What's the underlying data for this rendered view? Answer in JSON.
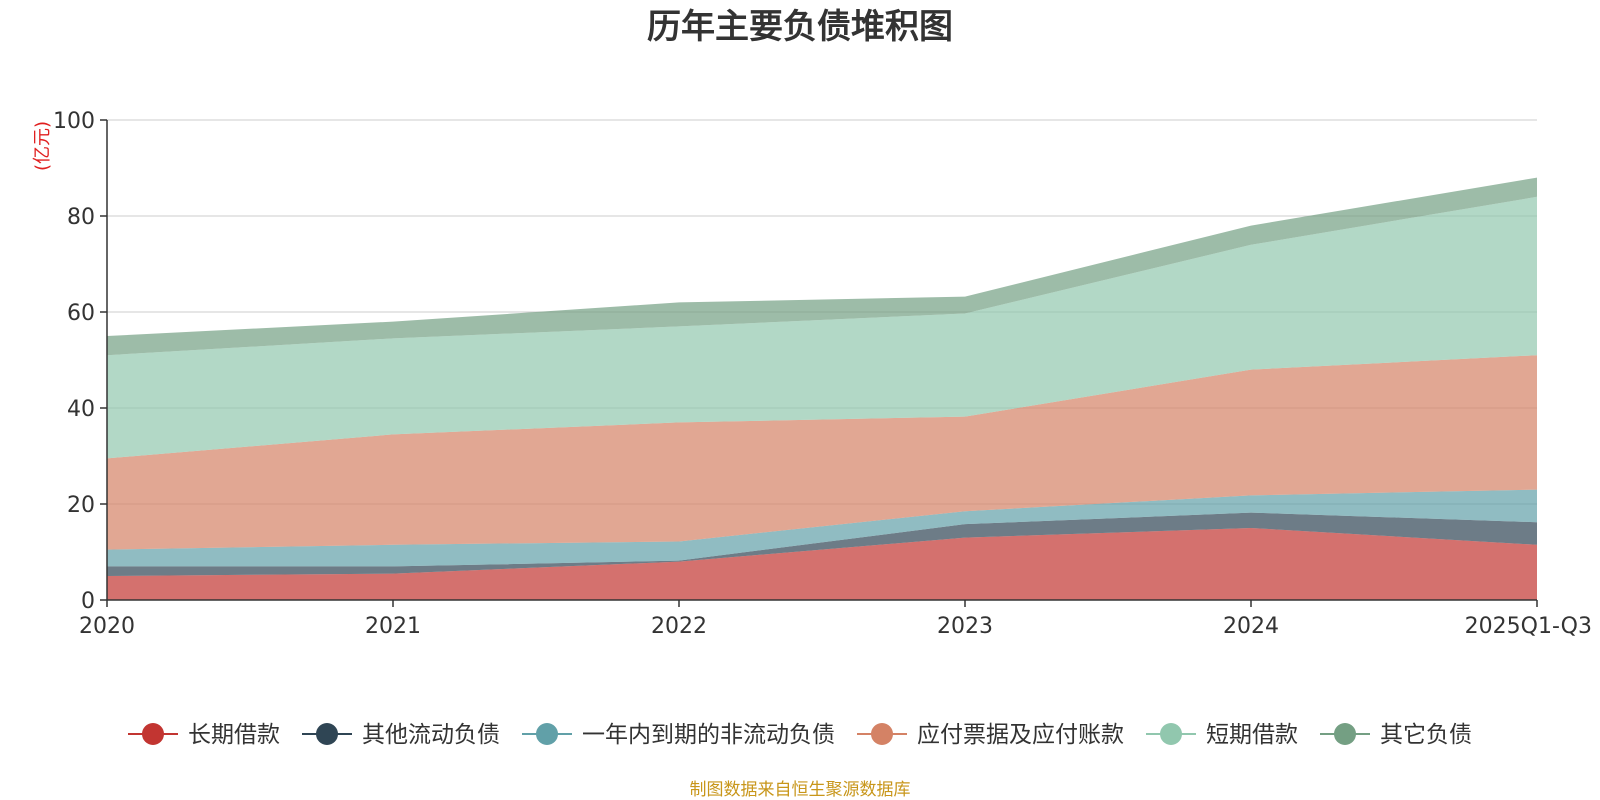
{
  "chart_data": {
    "type": "area",
    "stacked": true,
    "title": "历年主要负债堆积图",
    "ylabel": "(亿元)",
    "ylim": [
      0,
      100
    ],
    "yticks": [
      "0",
      "20",
      "40",
      "60",
      "80",
      "100"
    ],
    "categories": [
      "2020",
      "2021",
      "2022",
      "2023",
      "2024",
      "2025Q1-Q3"
    ],
    "series": [
      {
        "name": "长期借款",
        "color": "#c23531",
        "values": [
          5.0,
          5.5,
          8.0,
          13.0,
          15.0,
          11.5
        ]
      },
      {
        "name": "其他流动负债",
        "color": "#2f4554",
        "values": [
          2.0,
          1.5,
          0.2,
          2.8,
          3.2,
          4.7
        ]
      },
      {
        "name": "一年内到期的非流动负债",
        "color": "#61a0a8",
        "values": [
          3.5,
          4.5,
          4.0,
          2.7,
          3.6,
          6.8
        ]
      },
      {
        "name": "应付票据及应付账款",
        "color": "#d48265",
        "values": [
          19.0,
          23.0,
          24.8,
          19.7,
          26.2,
          28.0
        ]
      },
      {
        "name": "短期借款",
        "color": "#91c7ae",
        "values": [
          21.5,
          20.0,
          20.0,
          21.5,
          26.0,
          33.0
        ]
      },
      {
        "name": "其它负债",
        "color": "#749f83",
        "values": [
          4.0,
          3.5,
          5.0,
          3.5,
          4.0,
          4.0
        ]
      }
    ],
    "legend_position": "bottom"
  },
  "source": "制图数据来自恒生聚源数据库"
}
